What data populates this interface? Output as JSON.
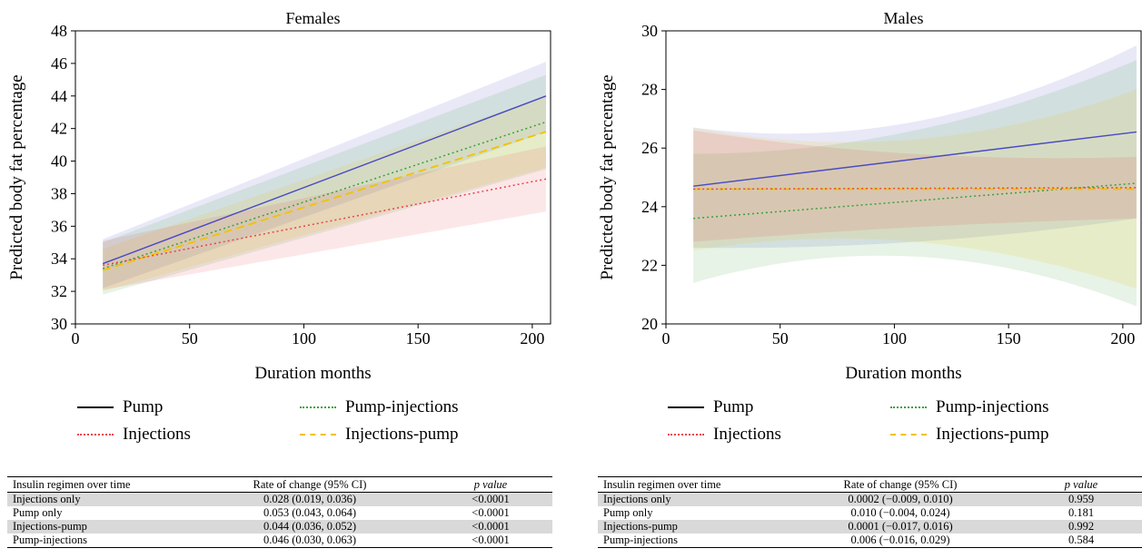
{
  "colors": {
    "pump": "#4a4ac4",
    "injections": "#e8444c",
    "pump_injections": "#3aa13a",
    "injections_pump": "#f2c200"
  },
  "legend": {
    "pump": "Pump",
    "injections": "Injections",
    "pump_injections": "Pump-injections",
    "injections_pump": "Injections-pump"
  },
  "chart_data": [
    {
      "type": "line",
      "title": "Females",
      "xlabel": "Duration months",
      "ylabel": "Predicted body fat percentage",
      "xlim": [
        0,
        208
      ],
      "ylim": [
        30,
        48
      ],
      "xticks": [
        0,
        50,
        100,
        150,
        200
      ],
      "yticks": [
        30,
        32,
        34,
        36,
        38,
        40,
        42,
        44,
        46,
        48
      ],
      "series": [
        {
          "name": "Pump",
          "key": "pump",
          "style": "solid",
          "x": [
            12,
            206
          ],
          "y": [
            33.7,
            44.0
          ],
          "ci_lower": [
            32.2,
            41.8
          ],
          "ci_upper": [
            35.2,
            46.1
          ]
        },
        {
          "name": "Pump-injections",
          "key": "pump_injections",
          "style": "dotted",
          "x": [
            12,
            206
          ],
          "y": [
            33.4,
            42.4
          ],
          "ci_lower": [
            31.8,
            39.5
          ],
          "ci_upper": [
            35.0,
            45.3
          ]
        },
        {
          "name": "Injections-pump",
          "key": "injections_pump",
          "style": "dashed",
          "x": [
            12,
            206
          ],
          "y": [
            33.3,
            41.8
          ],
          "ci_lower": [
            32.0,
            39.6
          ],
          "ci_upper": [
            34.6,
            44.0
          ]
        },
        {
          "name": "Injections",
          "key": "injections",
          "style": "dotted",
          "x": [
            12,
            206
          ],
          "y": [
            33.6,
            38.9
          ],
          "ci_lower": [
            32.1,
            36.9
          ],
          "ci_upper": [
            35.1,
            40.9
          ]
        }
      ]
    },
    {
      "type": "line",
      "title": "Males",
      "xlabel": "Duration months",
      "ylabel": "Predicted body fat percentage",
      "xlim": [
        0,
        208
      ],
      "ylim": [
        20,
        30
      ],
      "xticks": [
        0,
        50,
        100,
        150,
        200
      ],
      "yticks": [
        20,
        22,
        24,
        26,
        28,
        30
      ],
      "series": [
        {
          "name": "Pump",
          "key": "pump",
          "style": "solid",
          "x": [
            12,
            206
          ],
          "y": [
            24.7,
            26.55
          ],
          "ci_lower": [
            22.6,
            23.6
          ],
          "ci_upper": [
            26.7,
            29.5
          ],
          "ci_mid_lower": 22.8,
          "ci_mid_upper": 26.9
        },
        {
          "name": "Pump-injections",
          "key": "pump_injections",
          "style": "dotted",
          "x": [
            12,
            206
          ],
          "y": [
            23.6,
            24.8
          ],
          "ci_lower": [
            21.4,
            20.6
          ],
          "ci_upper": [
            25.8,
            29.0
          ],
          "ci_mid_lower": 22.3,
          "ci_mid_upper": 26.6
        },
        {
          "name": "Injections-pump",
          "key": "injections_pump",
          "style": "dashed",
          "x": [
            12,
            206
          ],
          "y": [
            24.6,
            24.6
          ],
          "ci_lower": [
            22.5,
            21.2
          ],
          "ci_upper": [
            26.7,
            28.0
          ],
          "ci_mid_lower": 22.8,
          "ci_mid_upper": 26.3
        },
        {
          "name": "Injections",
          "key": "injections",
          "style": "dotted",
          "x": [
            12,
            206
          ],
          "y": [
            24.6,
            24.65
          ],
          "ci_lower": [
            22.8,
            23.6
          ],
          "ci_upper": [
            26.6,
            25.7
          ],
          "ci_mid_lower": 23.3,
          "ci_mid_upper": 25.8
        }
      ]
    }
  ],
  "tables": [
    {
      "headers": [
        "Insulin regimen over time",
        "Rate of change (95% CI)",
        "p value"
      ],
      "rows": [
        [
          "Injections only",
          "0.028 (0.019, 0.036)",
          "<0.0001"
        ],
        [
          "Pump only",
          "0.053 (0.043, 0.064)",
          "<0.0001"
        ],
        [
          "Injections-pump",
          "0.044 (0.036, 0.052)",
          "<0.0001"
        ],
        [
          "Pump-injections",
          "0.046 (0.030, 0.063)",
          "<0.0001"
        ]
      ]
    },
    {
      "headers": [
        "Insulin regimen over time",
        "Rate of change (95% CI)",
        "p value"
      ],
      "rows": [
        [
          "Injections only",
          "0.0002 (−0.009, 0.010)",
          "0.959"
        ],
        [
          "Pump only",
          "0.010 (−0.004, 0.024)",
          "0.181"
        ],
        [
          "Injections-pump",
          "0.0001 (−0.017, 0.016)",
          "0.992"
        ],
        [
          "Pump-injections",
          "0.006 (−0.016, 0.029)",
          "0.584"
        ]
      ]
    }
  ]
}
